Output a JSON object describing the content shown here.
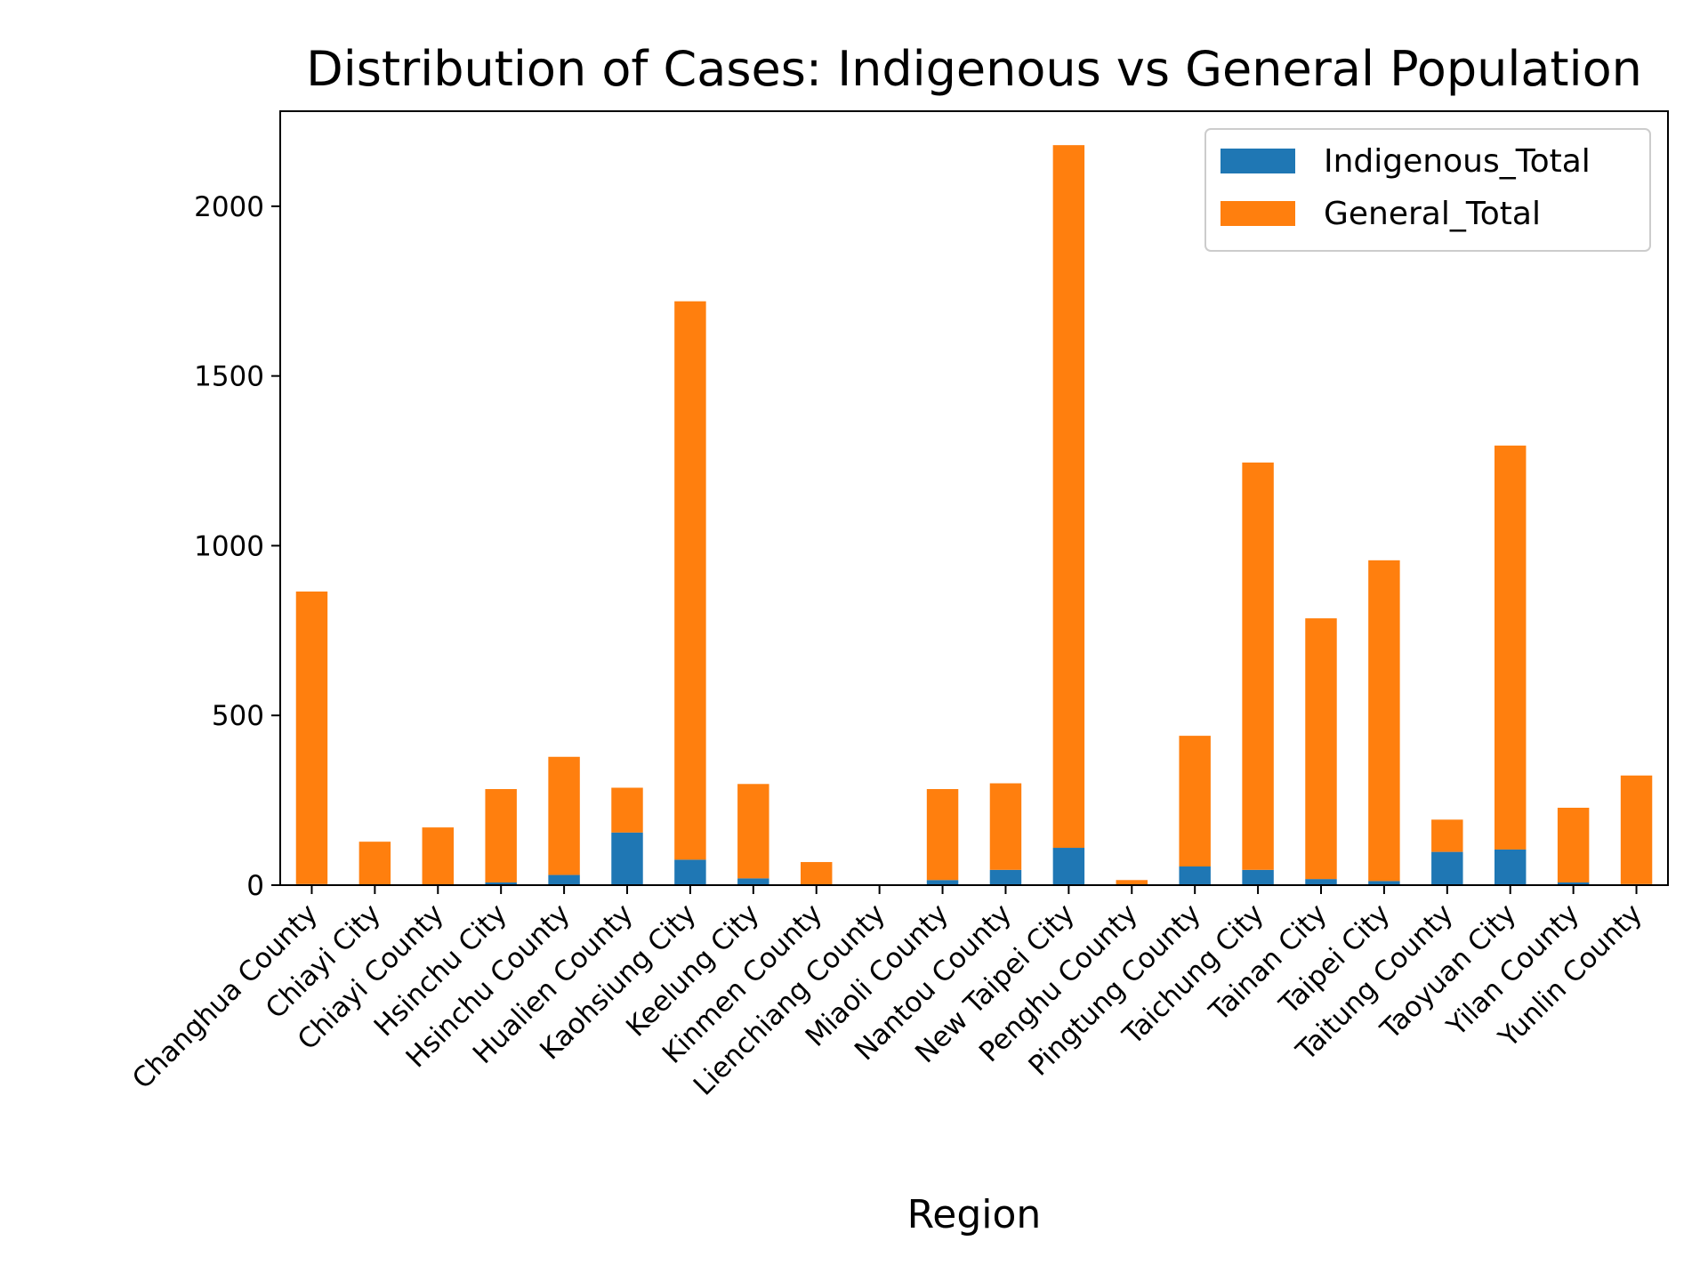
{
  "chart_data": {
    "type": "bar",
    "stacked": true,
    "title": "Distribution of Cases: Indigenous vs General Population",
    "xlabel": "Region",
    "ylabel": "",
    "ylim": [
      0,
      2280
    ],
    "yticks": [
      0,
      500,
      1000,
      1500,
      2000
    ],
    "grid": false,
    "legend_position": "top-right",
    "categories": [
      "Changhua County",
      "Chiayi City",
      "Chiayi County",
      "Hsinchu City",
      "Hsinchu County",
      "Hualien County",
      "Kaohsiung City",
      "Keelung City",
      "Kinmen County",
      "Lienchiang County",
      "Miaoli County",
      "Nantou County",
      "New Taipei City",
      "Penghu County",
      "Pingtung County",
      "Taichung City",
      "Tainan City",
      "Taipei City",
      "Taitung County",
      "Taoyuan City",
      "Yilan County",
      "Yunlin County"
    ],
    "series": [
      {
        "name": "Indigenous_Total",
        "color": "#1f77b4",
        "values": [
          3,
          0,
          0,
          8,
          30,
          155,
          75,
          20,
          0,
          0,
          15,
          45,
          110,
          0,
          55,
          45,
          18,
          12,
          98,
          105,
          8,
          3
        ]
      },
      {
        "name": "General_Total",
        "color": "#ff7f0e",
        "values": [
          862,
          128,
          170,
          275,
          348,
          132,
          1645,
          278,
          68,
          0,
          268,
          255,
          2070,
          15,
          385,
          1200,
          768,
          945,
          95,
          1190,
          220,
          320
        ]
      }
    ]
  }
}
